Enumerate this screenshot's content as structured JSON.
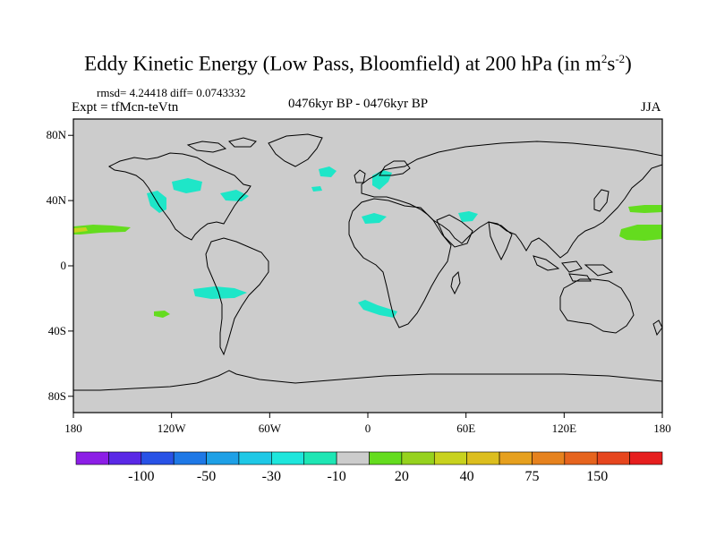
{
  "title": {
    "main": "Eddy Kinetic Energy (Low Pass, Bloomfield) at 200 hPa (in m",
    "sup1": "2",
    "mid": "s",
    "sup2": "-2",
    "close": ")"
  },
  "stats": "rmsd= 4.24418 diff= 0.0743332",
  "expt": "Expt = tfMcn-teVtn",
  "period": "0476kyr BP - 0476kyr BP",
  "season": "JJA",
  "lat_labels": [
    "80N",
    "40N",
    "0",
    "40S",
    "80S"
  ],
  "lat_values": [
    80,
    40,
    0,
    -40,
    -80
  ],
  "lon_labels": [
    "180",
    "120W",
    "60W",
    "0",
    "60E",
    "120E",
    "180"
  ],
  "lon_values": [
    -180,
    -120,
    -60,
    0,
    60,
    120,
    180
  ],
  "colorbar": {
    "colors": [
      "#8c1ee6",
      "#5a28e6",
      "#2852e6",
      "#1e78e6",
      "#1ea0e6",
      "#1ec8e6",
      "#1ee6dc",
      "#1ee6b4",
      "#cccccc",
      "#64dc1e",
      "#96d21e",
      "#c8d21e",
      "#dcbe1e",
      "#e6a01e",
      "#e6821e",
      "#e6641e",
      "#e6461e",
      "#e61e1e"
    ],
    "labels": [
      "-100",
      "-50",
      "-30",
      "-10",
      "20",
      "40",
      "75",
      "150"
    ],
    "label_after_box": [
      1,
      3,
      5,
      7,
      9,
      11,
      13,
      15
    ]
  },
  "field_colors": {
    "cyan": "#1ee6c8",
    "green": "#64dc1e",
    "yellow": "#c8d21e"
  },
  "map_background": "#cccccc"
}
